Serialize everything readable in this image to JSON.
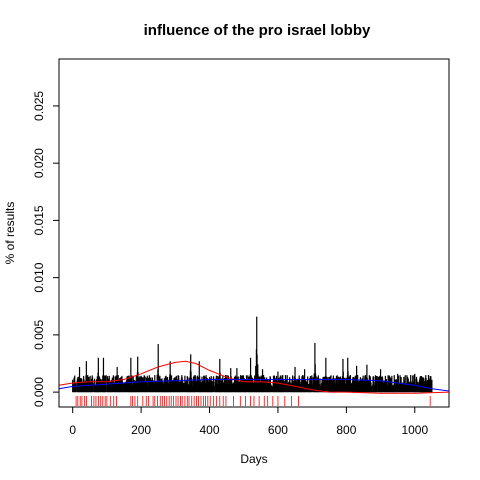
{
  "chart_data": {
    "type": "line",
    "title": "influence of the pro israel lobby",
    "xlabel": "Days",
    "ylabel": "% of results",
    "xlim": [
      -40,
      1100
    ],
    "ylim": [
      -0.0013,
      0.0291
    ],
    "xticks": [
      0,
      200,
      400,
      600,
      800,
      1000
    ],
    "yticks": [
      0.0,
      0.005,
      0.01,
      0.015,
      0.02,
      0.025
    ],
    "ytick_labels": [
      "0.000",
      "0.005",
      "0.010",
      "0.015",
      "0.020",
      "0.025"
    ],
    "grid": false,
    "series": [
      {
        "style": "spikes",
        "color": "#000000",
        "x_range": [
          0,
          1050
        ],
        "peaks": [
          {
            "x": 20,
            "y": 0.0022
          },
          {
            "x": 40,
            "y": 0.0027
          },
          {
            "x": 75,
            "y": 0.003
          },
          {
            "x": 90,
            "y": 0.003
          },
          {
            "x": 130,
            "y": 0.0022
          },
          {
            "x": 170,
            "y": 0.003
          },
          {
            "x": 190,
            "y": 0.0031
          },
          {
            "x": 250,
            "y": 0.0042
          },
          {
            "x": 285,
            "y": 0.0027
          },
          {
            "x": 345,
            "y": 0.0033
          },
          {
            "x": 370,
            "y": 0.0027
          },
          {
            "x": 430,
            "y": 0.0029
          },
          {
            "x": 462,
            "y": 0.0021
          },
          {
            "x": 480,
            "y": 0.0021
          },
          {
            "x": 520,
            "y": 0.003
          },
          {
            "x": 538,
            "y": 0.0066
          },
          {
            "x": 555,
            "y": 0.002
          },
          {
            "x": 600,
            "y": 0.0018
          },
          {
            "x": 650,
            "y": 0.0022
          },
          {
            "x": 678,
            "y": 0.002
          },
          {
            "x": 708,
            "y": 0.0043
          },
          {
            "x": 740,
            "y": 0.003
          },
          {
            "x": 790,
            "y": 0.0029
          },
          {
            "x": 804,
            "y": 0.003
          },
          {
            "x": 830,
            "y": 0.0023
          },
          {
            "x": 860,
            "y": 0.0024
          },
          {
            "x": 900,
            "y": 0.002
          },
          {
            "x": 950,
            "y": 0.0016
          },
          {
            "x": 1000,
            "y": 0.0016
          },
          {
            "x": 1040,
            "y": 0.0015
          }
        ]
      },
      {
        "style": "line",
        "color": "#ff0000",
        "points": [
          [
            -40,
            0.0006
          ],
          [
            0,
            0.0008
          ],
          [
            50,
            0.0009
          ],
          [
            100,
            0.0009
          ],
          [
            150,
            0.0011
          ],
          [
            200,
            0.0016
          ],
          [
            250,
            0.0022
          ],
          [
            300,
            0.0026
          ],
          [
            330,
            0.0027
          ],
          [
            360,
            0.0025
          ],
          [
            400,
            0.0019
          ],
          [
            450,
            0.0013
          ],
          [
            500,
            0.0009
          ],
          [
            550,
            0.0009
          ],
          [
            600,
            0.0008
          ],
          [
            650,
            0.0005
          ],
          [
            700,
            0.0002
          ],
          [
            750,
            0.0
          ],
          [
            800,
            0.0
          ],
          [
            900,
            -0.0001
          ],
          [
            1000,
            -0.0001
          ],
          [
            1100,
            0.0
          ]
        ]
      },
      {
        "style": "line",
        "color": "#0000ff",
        "points": [
          [
            -40,
            0.0003
          ],
          [
            0,
            0.0005
          ],
          [
            100,
            0.0007
          ],
          [
            200,
            0.0009
          ],
          [
            300,
            0.001
          ],
          [
            400,
            0.0011
          ],
          [
            500,
            0.0011
          ],
          [
            600,
            0.0011
          ],
          [
            700,
            0.0011
          ],
          [
            800,
            0.0011
          ],
          [
            900,
            0.001
          ],
          [
            1000,
            0.0006
          ],
          [
            1050,
            0.0003
          ],
          [
            1100,
            0.0001
          ]
        ]
      },
      {
        "style": "rug",
        "color": "#ff0000",
        "x": [
          10,
          15,
          22,
          27,
          35,
          40,
          55,
          62,
          68,
          75,
          82,
          88,
          95,
          100,
          110,
          120,
          128,
          170,
          175,
          182,
          190,
          205,
          215,
          222,
          235,
          240,
          248,
          256,
          262,
          268,
          275,
          282,
          288,
          295,
          302,
          308,
          315,
          320,
          328,
          335,
          340,
          348,
          355,
          362,
          368,
          375,
          382,
          388,
          395,
          402,
          412,
          420,
          430,
          440,
          448,
          470,
          490,
          505,
          520,
          530,
          545,
          560,
          570,
          585,
          600,
          620,
          640,
          660,
          1045
        ]
      }
    ]
  }
}
